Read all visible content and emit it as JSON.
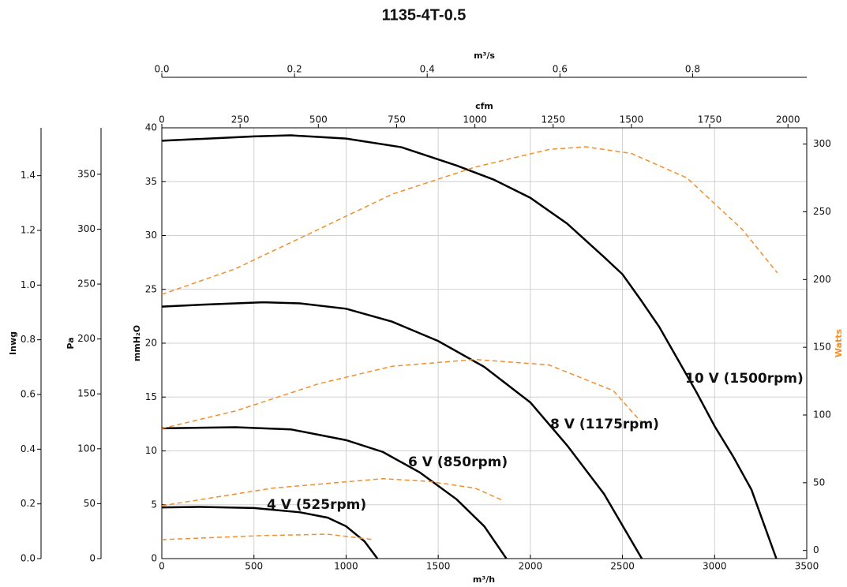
{
  "chart_data": {
    "type": "line",
    "title": "1135-4T-0.5",
    "x_label": "m³/h",
    "y_label": "mmH₂O",
    "y2_label": "Watts",
    "xlim": [
      0,
      3500
    ],
    "xticks": [
      0,
      500,
      1000,
      1500,
      2000,
      2500,
      3000,
      3500
    ],
    "ylim": [
      0,
      40
    ],
    "yticks": [
      0,
      5,
      10,
      15,
      20,
      25,
      30,
      35,
      40
    ],
    "y2lim": [
      -6,
      312
    ],
    "y2ticks": [
      0,
      50,
      100,
      150,
      200,
      250,
      300
    ],
    "y2_color": "#f28e2b",
    "grid": true,
    "top_axes": [
      {
        "label": "cfm",
        "lim": [
          0,
          2060
        ],
        "ticks": [
          0,
          250,
          500,
          750,
          1000,
          1250,
          1500,
          1750,
          2000
        ]
      },
      {
        "label": "m³/s",
        "lim": [
          0,
          0.972
        ],
        "ticks": [
          {
            "value": 0,
            "label": "0.0"
          },
          0.2,
          0.4,
          0.6,
          0.8
        ]
      }
    ],
    "left_axes": [
      {
        "label": "Pa",
        "lim": [
          0,
          392.3
        ],
        "ticks": [
          0,
          50,
          100,
          150,
          200,
          250,
          300,
          350
        ]
      },
      {
        "label": "Inwg",
        "lim": [
          0,
          1.575
        ],
        "ticks": [
          {
            "value": 0,
            "label": "0.0"
          },
          0.2,
          0.4,
          0.6,
          0.8,
          {
            "value": 1,
            "label": "1.0"
          },
          1.2,
          1.4
        ]
      }
    ],
    "series": [
      {
        "name": "10 V (1500rpm)",
        "color": "#000000",
        "x": [
          0,
          500,
          700,
          1000,
          1300,
          1600,
          1800,
          2000,
          2200,
          2400,
          2500,
          2600,
          2700,
          2800,
          2900,
          3000,
          3100,
          3200,
          3335
        ],
        "values": [
          38.8,
          39.2,
          39.3,
          39.0,
          38.2,
          36.5,
          35.2,
          33.5,
          31.1,
          28.0,
          26.4,
          24.0,
          21.5,
          18.5,
          15.5,
          12.3,
          9.5,
          6.4,
          0
        ]
      },
      {
        "name": "8 V (1175rpm)",
        "color": "#000000",
        "x": [
          0,
          250,
          550,
          750,
          1000,
          1250,
          1500,
          1750,
          2000,
          2200,
          2400,
          2605
        ],
        "values": [
          23.4,
          23.6,
          23.8,
          23.7,
          23.2,
          22.0,
          20.2,
          17.8,
          14.5,
          10.5,
          6.0,
          0
        ]
      },
      {
        "name": "6 V (850rpm)",
        "color": "#000000",
        "x": [
          0,
          400,
          700,
          1000,
          1200,
          1400,
          1600,
          1750,
          1870
        ],
        "values": [
          12.1,
          12.2,
          12.0,
          11.0,
          9.9,
          8.0,
          5.5,
          3.0,
          0
        ]
      },
      {
        "name": "4 V (525rpm)",
        "color": "#000000",
        "x": [
          0,
          200,
          500,
          750,
          900,
          1000,
          1100,
          1170
        ],
        "values": [
          4.75,
          4.8,
          4.7,
          4.3,
          3.8,
          3.0,
          1.6,
          0
        ]
      },
      {
        "color": "#f28e2b",
        "axis": "y2",
        "dashed": true,
        "x": [
          0,
          400,
          850,
          1250,
          1700,
          2100,
          2300,
          2550,
          2850,
          3150,
          3340
        ],
        "values": [
          189,
          208,
          237,
          263,
          283,
          296,
          298,
          293,
          275,
          237,
          205
        ]
      },
      {
        "color": "#f28e2b",
        "axis": "y2",
        "dashed": true,
        "x": [
          0,
          400,
          850,
          1250,
          1700,
          2100,
          2450,
          2600
        ],
        "values": [
          90,
          103,
          123,
          136,
          141,
          137,
          118,
          95
        ]
      },
      {
        "color": "#f28e2b",
        "axis": "y2",
        "dashed": true,
        "x": [
          0,
          600,
          1200,
          1450,
          1700,
          1850
        ],
        "values": [
          33,
          46,
          53,
          51,
          46,
          37
        ]
      },
      {
        "color": "#f28e2b",
        "axis": "y2",
        "dashed": true,
        "x": [
          0,
          550,
          900,
          1150
        ],
        "values": [
          8,
          11,
          12,
          8
        ]
      }
    ]
  }
}
